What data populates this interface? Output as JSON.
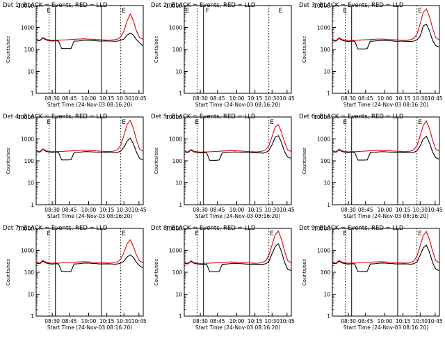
{
  "colors": {
    "events": "#000000",
    "lld": "#e00000",
    "background": "#ffffff",
    "axes": "#000000"
  },
  "chart_data": [
    {
      "type": "line",
      "title": "Det 1r BLACK = Events, RED = LLD",
      "xlabel": "Start Time (24-Nov-03 08:16:20)",
      "ylabel": "Counts/sec",
      "xticks": [
        "08:30",
        "08:45",
        "10:00",
        "10:15",
        "10:30",
        "10:45"
      ],
      "yticks": [
        "1",
        "10",
        "100",
        "1000",
        "10000"
      ],
      "yscale": "log",
      "ylim": [
        1,
        10000
      ],
      "grid": false,
      "flag_marks": [
        "E",
        "E"
      ],
      "series": [
        {
          "name": "Events",
          "color": "#000000",
          "values": [
            260,
            250,
            330,
            270,
            250,
            240,
            250,
            240,
            110,
            110,
            110,
            110,
            240,
            240,
            250,
            260,
            265,
            260,
            255,
            250,
            240,
            240,
            245,
            240,
            240,
            235,
            240,
            260,
            300,
            450,
            560,
            450,
            280,
            200,
            150
          ]
        },
        {
          "name": "LLD",
          "color": "#e00000",
          "values": [
            280,
            260,
            350,
            290,
            270,
            260,
            270,
            260,
            270,
            270,
            280,
            285,
            290,
            295,
            300,
            305,
            300,
            295,
            290,
            285,
            280,
            275,
            270,
            265,
            270,
            280,
            300,
            380,
            700,
            2000,
            4200,
            2000,
            700,
            350,
            290
          ]
        }
      ]
    },
    {
      "type": "line",
      "title": "Det 2r BLACK = Events, RED = LLD",
      "xlabel": "Start Time (24-Nov-03 08:16:20)",
      "ylabel": "Counts/sec",
      "xticks": [
        "08:30",
        "08:45",
        "10:00",
        "10:15",
        "10:30",
        "10:45"
      ],
      "yticks": [
        "1",
        "10",
        "100",
        "1000",
        "10000"
      ],
      "yscale": "log",
      "ylim": [
        1,
        10000
      ],
      "grid": false,
      "flag_marks": [
        "E",
        "F",
        "E"
      ],
      "series": []
    },
    {
      "type": "line",
      "title": "Det 3r BLACK = Events, RED = LLD",
      "xlabel": "Start Time (24-Nov-03 08:16:20)",
      "ylabel": "Counts/sec",
      "xticks": [
        "08:30",
        "08:45",
        "10:00",
        "10:15",
        "10:30",
        "10:45"
      ],
      "yticks": [
        "1",
        "10",
        "100",
        "1000",
        "10000"
      ],
      "yscale": "log",
      "ylim": [
        1,
        10000
      ],
      "grid": false,
      "flag_marks": [
        "E",
        "E"
      ],
      "series": [
        {
          "name": "Events",
          "color": "#000000",
          "values": [
            250,
            240,
            320,
            260,
            240,
            230,
            240,
            235,
            105,
            105,
            105,
            108,
            235,
            240,
            245,
            255,
            260,
            255,
            250,
            245,
            235,
            235,
            240,
            235,
            235,
            230,
            240,
            270,
            400,
            1200,
            1400,
            700,
            250,
            150,
            130
          ]
        },
        {
          "name": "LLD",
          "color": "#e00000",
          "values": [
            270,
            255,
            340,
            280,
            265,
            255,
            265,
            255,
            265,
            270,
            275,
            280,
            285,
            290,
            295,
            300,
            295,
            290,
            285,
            280,
            275,
            270,
            265,
            260,
            265,
            280,
            320,
            500,
            1500,
            5000,
            7000,
            3000,
            900,
            350,
            280
          ]
        }
      ]
    },
    {
      "type": "line",
      "title": "Det 4r BLACK = Events, RED = LLD",
      "xlabel": "Start Time (24-Nov-03 08:16:20)",
      "ylabel": "Counts/sec",
      "xticks": [
        "08:30",
        "08:45",
        "10:00",
        "10:15",
        "10:30",
        "10:45"
      ],
      "yticks": [
        "1",
        "10",
        "100",
        "1000",
        "10000"
      ],
      "yscale": "log",
      "ylim": [
        1,
        10000
      ],
      "grid": false,
      "flag_marks": [
        "E",
        "E"
      ],
      "series": [
        {
          "name": "Events",
          "color": "#000000",
          "values": [
            260,
            250,
            330,
            270,
            250,
            240,
            250,
            240,
            110,
            110,
            110,
            112,
            240,
            240,
            250,
            260,
            265,
            260,
            255,
            250,
            240,
            240,
            245,
            240,
            240,
            235,
            245,
            280,
            420,
            800,
            1100,
            600,
            250,
            130,
            110
          ]
        },
        {
          "name": "LLD",
          "color": "#e00000",
          "values": [
            280,
            265,
            350,
            290,
            270,
            260,
            270,
            265,
            270,
            275,
            280,
            285,
            290,
            295,
            300,
            305,
            300,
            295,
            290,
            285,
            280,
            275,
            270,
            265,
            270,
            285,
            330,
            520,
            1500,
            4500,
            7000,
            3000,
            900,
            350,
            280
          ]
        }
      ]
    },
    {
      "type": "line",
      "title": "Det 5r BLACK = Events, RED = LLD",
      "xlabel": "Start Time (24-Nov-03 08:16:20)",
      "ylabel": "Counts/sec",
      "xticks": [
        "08:30",
        "08:45",
        "10:00",
        "10:15",
        "10:30",
        "10:45"
      ],
      "yticks": [
        "1",
        "10",
        "100",
        "1000",
        "10000"
      ],
      "yscale": "log",
      "ylim": [
        1,
        10000
      ],
      "grid": false,
      "flag_marks": [
        "E",
        "E"
      ],
      "series": [
        {
          "name": "Events",
          "color": "#000000",
          "values": [
            250,
            240,
            310,
            255,
            240,
            230,
            235,
            230,
            105,
            105,
            105,
            108,
            230,
            235,
            240,
            250,
            255,
            250,
            245,
            240,
            235,
            230,
            235,
            230,
            230,
            225,
            240,
            300,
            550,
            1200,
            1400,
            700,
            260,
            150,
            130
          ]
        },
        {
          "name": "LLD",
          "color": "#e00000",
          "values": [
            270,
            255,
            330,
            275,
            260,
            250,
            260,
            255,
            260,
            265,
            270,
            275,
            280,
            285,
            290,
            295,
            290,
            285,
            280,
            275,
            270,
            265,
            260,
            255,
            265,
            280,
            320,
            500,
            1300,
            3500,
            4500,
            2000,
            700,
            320,
            270
          ]
        }
      ]
    },
    {
      "type": "line",
      "title": "Det 6r BLACK = Events, RED = LLD",
      "xlabel": "Start Time (24-Nov-03 08:16:20)",
      "ylabel": "Counts/sec",
      "xticks": [
        "08:30",
        "08:45",
        "10:00",
        "10:15",
        "10:30",
        "10:45"
      ],
      "yticks": [
        "1",
        "10",
        "100",
        "1000",
        "10000"
      ],
      "yscale": "log",
      "ylim": [
        1,
        10000
      ],
      "grid": false,
      "flag_marks": [
        "E",
        "E"
      ],
      "series": [
        {
          "name": "Events",
          "color": "#000000",
          "values": [
            255,
            245,
            320,
            265,
            245,
            235,
            245,
            238,
            108,
            108,
            108,
            110,
            238,
            240,
            248,
            258,
            262,
            258,
            252,
            248,
            238,
            238,
            242,
            238,
            238,
            232,
            245,
            290,
            480,
            1000,
            1300,
            650,
            250,
            140,
            120
          ]
        },
        {
          "name": "LLD",
          "color": "#e00000",
          "values": [
            275,
            260,
            345,
            285,
            268,
            258,
            268,
            260,
            268,
            272,
            278,
            282,
            288,
            292,
            298,
            302,
            298,
            292,
            288,
            282,
            278,
            272,
            268,
            262,
            268,
            282,
            325,
            510,
            1400,
            4200,
            6500,
            2800,
            850,
            340,
            280
          ]
        }
      ]
    },
    {
      "type": "line",
      "title": "Det 7r BLACK = Events, RED = LLD",
      "xlabel": "Start Time (24-Nov-03 08:16:20)",
      "ylabel": "Counts/sec",
      "xticks": [
        "08:30",
        "08:45",
        "10:00",
        "10:15",
        "10:30",
        "10:45"
      ],
      "yticks": [
        "1",
        "10",
        "100",
        "1000",
        "10000"
      ],
      "yscale": "log",
      "ylim": [
        1,
        10000
      ],
      "grid": false,
      "flag_marks": [
        "E",
        "E"
      ],
      "series": [
        {
          "name": "Events",
          "color": "#000000",
          "values": [
            255,
            245,
            320,
            265,
            245,
            235,
            245,
            238,
            108,
            108,
            108,
            110,
            238,
            240,
            248,
            258,
            262,
            258,
            252,
            248,
            238,
            238,
            242,
            238,
            238,
            232,
            240,
            260,
            320,
            500,
            620,
            480,
            280,
            200,
            160
          ]
        },
        {
          "name": "LLD",
          "color": "#e00000",
          "values": [
            275,
            260,
            345,
            285,
            268,
            258,
            268,
            260,
            268,
            272,
            278,
            282,
            288,
            292,
            298,
            302,
            298,
            292,
            288,
            282,
            278,
            272,
            268,
            262,
            268,
            280,
            300,
            400,
            800,
            2000,
            3000,
            1500,
            600,
            330,
            280
          ]
        }
      ]
    },
    {
      "type": "line",
      "title": "Det 8r BLACK = Events, RED = LLD",
      "xlabel": "Start Time (24-Nov-03 08:16:20)",
      "ylabel": "Counts/sec",
      "xticks": [
        "08:30",
        "08:45",
        "10:00",
        "10:15",
        "10:30",
        "10:45"
      ],
      "yticks": [
        "1",
        "10",
        "100",
        "1000",
        "10000"
      ],
      "yscale": "log",
      "ylim": [
        1,
        10000
      ],
      "grid": false,
      "flag_marks": [
        "E",
        "E"
      ],
      "series": [
        {
          "name": "Events",
          "color": "#000000",
          "values": [
            250,
            240,
            310,
            255,
            240,
            230,
            235,
            230,
            105,
            105,
            105,
            108,
            230,
            235,
            240,
            250,
            255,
            250,
            245,
            240,
            235,
            230,
            235,
            230,
            230,
            228,
            245,
            320,
            700,
            1500,
            2000,
            900,
            280,
            140,
            120
          ]
        },
        {
          "name": "LLD",
          "color": "#e00000",
          "values": [
            270,
            255,
            330,
            275,
            260,
            250,
            260,
            255,
            260,
            265,
            270,
            275,
            280,
            285,
            290,
            295,
            290,
            285,
            280,
            275,
            270,
            265,
            260,
            255,
            265,
            285,
            340,
            600,
            1800,
            5000,
            7500,
            3200,
            900,
            340,
            280
          ]
        }
      ]
    },
    {
      "type": "line",
      "title": "Det 9r BLACK = Events, RED = LLD",
      "xlabel": "Start Time (24-Nov-03 08:16:20)",
      "ylabel": "Counts/sec",
      "xticks": [
        "08:30",
        "08:45",
        "10:00",
        "10:15",
        "10:30",
        "10:45"
      ],
      "yticks": [
        "1",
        "10",
        "100",
        "1000",
        "10000"
      ],
      "yscale": "log",
      "ylim": [
        1,
        10000
      ],
      "grid": false,
      "flag_marks": [
        "E",
        "E"
      ],
      "series": [
        {
          "name": "Events",
          "color": "#000000",
          "values": [
            255,
            245,
            320,
            265,
            245,
            235,
            245,
            238,
            108,
            108,
            108,
            110,
            238,
            240,
            248,
            258,
            262,
            258,
            252,
            248,
            238,
            238,
            242,
            238,
            238,
            232,
            245,
            300,
            600,
            1300,
            1700,
            800,
            270,
            140,
            120
          ]
        },
        {
          "name": "LLD",
          "color": "#e00000",
          "values": [
            275,
            260,
            345,
            285,
            268,
            258,
            268,
            260,
            268,
            272,
            278,
            282,
            288,
            292,
            298,
            302,
            298,
            292,
            288,
            282,
            278,
            272,
            268,
            262,
            268,
            282,
            330,
            560,
            1600,
            4800,
            7200,
            3000,
            880,
            340,
            280
          ]
        }
      ]
    }
  ]
}
